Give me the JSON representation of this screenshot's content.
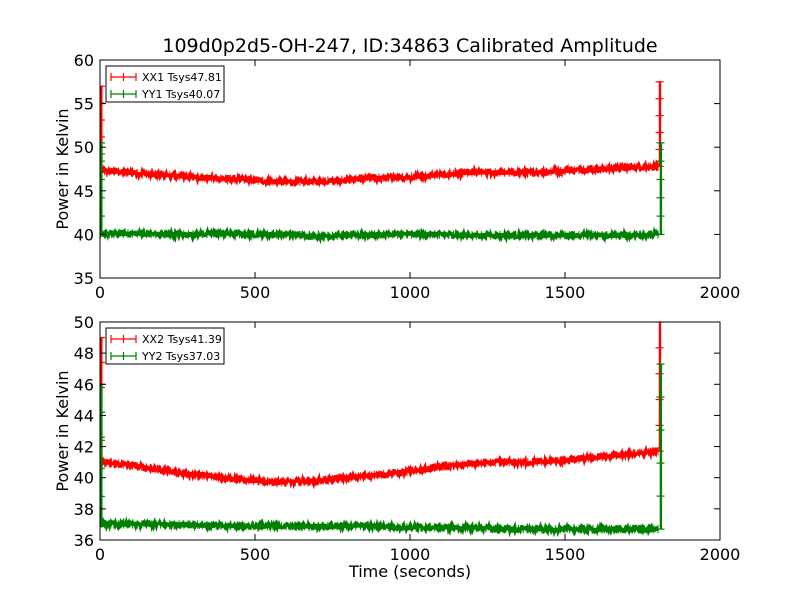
{
  "chart_data": [
    {
      "type": "line",
      "title": "109d0p2d5-OH-247, ID:34863 Calibrated Amplitude",
      "ylabel": "Power in Kelvin",
      "xlabel": "",
      "xlim": [
        0,
        2000
      ],
      "ylim": [
        35,
        60
      ],
      "xticks": [
        "0",
        "500",
        "1000",
        "1500",
        "2000"
      ],
      "yticks": [
        "35",
        "40",
        "45",
        "50",
        "55",
        "60"
      ],
      "grid": false,
      "legend_position": "top-left",
      "series": [
        {
          "name": "XX1 Tsys47.81",
          "color": "#ff0000",
          "x": [
            0,
            100,
            200,
            300,
            400,
            500,
            600,
            700,
            800,
            900,
            1000,
            1100,
            1200,
            1300,
            1400,
            1500,
            1600,
            1700,
            1800
          ],
          "y": [
            47.3,
            47.1,
            46.8,
            46.6,
            46.4,
            46.2,
            46.0,
            46.1,
            46.3,
            46.5,
            46.6,
            46.8,
            47.1,
            47.1,
            47.1,
            47.3,
            47.5,
            47.7,
            47.8
          ],
          "spikes": [
            [
              3,
              57
            ],
            [
              1805,
              57.5
            ]
          ]
        },
        {
          "name": "YY1 Tsys40.07",
          "color": "#008000",
          "x": [
            0,
            100,
            200,
            300,
            400,
            500,
            600,
            700,
            800,
            900,
            1000,
            1100,
            1200,
            1300,
            1400,
            1500,
            1600,
            1700,
            1800
          ],
          "y": [
            40.0,
            40.1,
            40.0,
            40.0,
            40.1,
            40.0,
            40.0,
            39.8,
            39.9,
            40.0,
            40.0,
            40.0,
            39.9,
            39.9,
            39.9,
            39.9,
            39.9,
            39.9,
            40.0
          ],
          "spikes": [
            [
              3,
              50.5
            ],
            [
              1808,
              50.5
            ]
          ]
        }
      ]
    },
    {
      "type": "line",
      "title": "",
      "ylabel": "Power in Kelvin",
      "xlabel": "Time (seconds)",
      "xlim": [
        0,
        2000
      ],
      "ylim": [
        36,
        50
      ],
      "xticks": [
        "0",
        "500",
        "1000",
        "1500",
        "2000"
      ],
      "yticks": [
        "36",
        "38",
        "40",
        "42",
        "44",
        "46",
        "48",
        "50"
      ],
      "grid": false,
      "legend_position": "top-left",
      "series": [
        {
          "name": "XX2 Tsys41.39",
          "color": "#ff0000",
          "x": [
            0,
            100,
            200,
            300,
            400,
            500,
            600,
            700,
            800,
            900,
            1000,
            1100,
            1200,
            1300,
            1400,
            1500,
            1600,
            1700,
            1800
          ],
          "y": [
            41.0,
            40.8,
            40.5,
            40.2,
            40.0,
            39.8,
            39.7,
            39.8,
            40.0,
            40.2,
            40.4,
            40.7,
            40.9,
            41.0,
            41.0,
            41.1,
            41.3,
            41.5,
            41.7
          ],
          "spikes": [
            [
              3,
              49
            ],
            [
              1805,
              50
            ]
          ]
        },
        {
          "name": "YY2 Tsys37.03",
          "color": "#008000",
          "x": [
            0,
            100,
            200,
            300,
            400,
            500,
            600,
            700,
            800,
            900,
            1000,
            1100,
            1200,
            1300,
            1400,
            1500,
            1600,
            1700,
            1800
          ],
          "y": [
            37.0,
            37.0,
            37.0,
            37.0,
            36.9,
            36.9,
            36.9,
            36.9,
            36.9,
            36.9,
            36.8,
            36.8,
            36.8,
            36.7,
            36.7,
            36.7,
            36.7,
            36.7,
            36.7
          ],
          "spikes": [
            [
              3,
              46
            ],
            [
              1808,
              47.3
            ]
          ]
        }
      ]
    }
  ]
}
